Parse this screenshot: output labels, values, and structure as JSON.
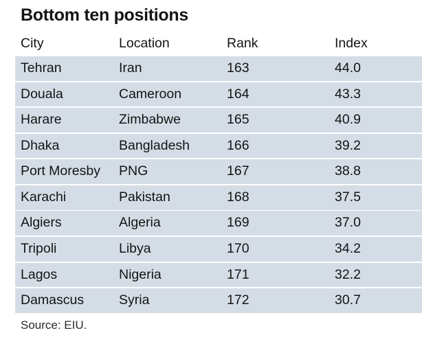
{
  "chart_data": {
    "type": "table",
    "title": "Bottom ten positions",
    "columns": [
      "City",
      "Location",
      "Rank",
      "Index"
    ],
    "rows": [
      [
        "Tehran",
        "Iran",
        "163",
        "44.0"
      ],
      [
        "Douala",
        "Cameroon",
        "164",
        "43.3"
      ],
      [
        "Harare",
        "Zimbabwe",
        "165",
        "40.9"
      ],
      [
        "Dhaka",
        "Bangladesh",
        "166",
        "39.2"
      ],
      [
        "Port Moresby",
        "PNG",
        "167",
        "38.8"
      ],
      [
        "Karachi",
        "Pakistan",
        "168",
        "37.5"
      ],
      [
        "Algiers",
        "Algeria",
        "169",
        "37.0"
      ],
      [
        "Tripoli",
        "Libya",
        "170",
        "34.2"
      ],
      [
        "Lagos",
        "Nigeria",
        "171",
        "32.2"
      ],
      [
        "Damascus",
        "Syria",
        "172",
        "30.7"
      ]
    ],
    "source": "Source: EIU."
  },
  "colors": {
    "row_fill": "#d4dde6",
    "text": "#141414",
    "background": "#ffffff"
  }
}
